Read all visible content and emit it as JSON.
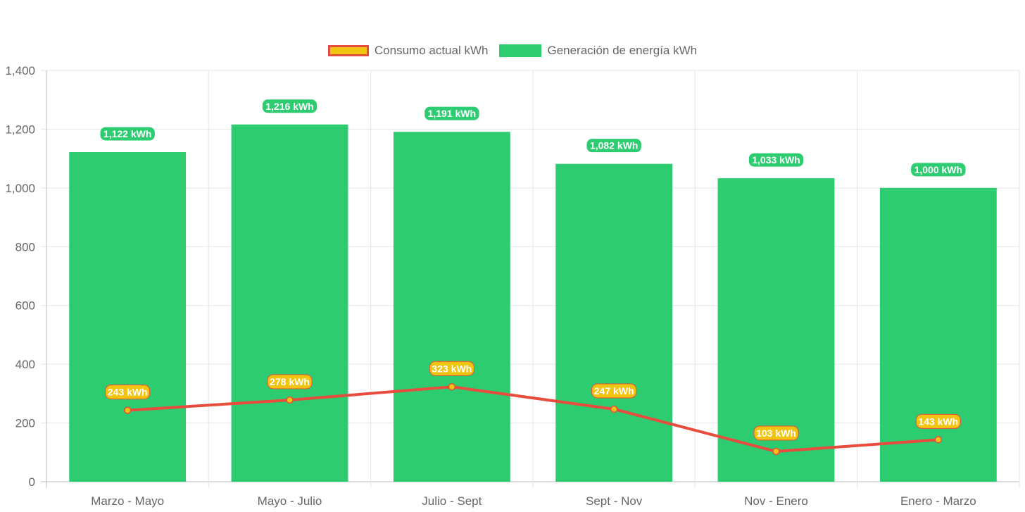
{
  "chart_data": {
    "type": "bar",
    "categories": [
      "Marzo - Mayo",
      "Mayo - Julio",
      "Julio - Sept",
      "Sept - Nov",
      "Nov - Enero",
      "Enero - Marzo"
    ],
    "series": [
      {
        "name": "Consumo actual kWh",
        "type": "line",
        "values": [
          243,
          278,
          323,
          247,
          103,
          143
        ],
        "labels": [
          "243 kWh",
          "278 kWh",
          "323 kWh",
          "247 kWh",
          "103 kWh",
          "143 kWh"
        ],
        "color": "#e74c3c",
        "fill": "#f1c40f"
      },
      {
        "name": "Generación de energía kWh",
        "type": "bar",
        "values": [
          1122,
          1216,
          1191,
          1082,
          1033,
          1000
        ],
        "labels": [
          "1,122 kWh",
          "1,216 kWh",
          "1,191 kWh",
          "1,082 kWh",
          "1,033 kWh",
          "1,000 kWh"
        ],
        "color": "#2ecc71"
      }
    ],
    "ylim": [
      0,
      1400
    ],
    "yticks": [
      "0",
      "200",
      "400",
      "600",
      "800",
      "1,000",
      "1,200",
      "1,400"
    ],
    "grid": true,
    "legend_position": "top-center"
  }
}
